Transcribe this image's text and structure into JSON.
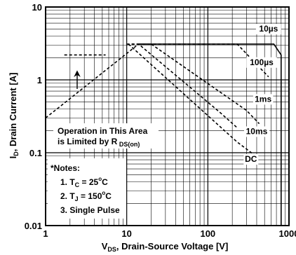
{
  "chart_data": {
    "type": "line",
    "x_scale": "log",
    "y_scale": "log",
    "xlim": [
      1,
      1000
    ],
    "ylim": [
      0.01,
      10
    ],
    "grid": true,
    "xlabel_sym": "V",
    "xlabel_sub": "DS",
    "xlabel_rest": ", Drain-Source Voltage [V]",
    "ylabel_sym": "I",
    "ylabel_sub": "D",
    "ylabel_rest": ", Drain Current [A]",
    "x_ticks": [
      {
        "value": 1,
        "label": "1"
      },
      {
        "value": 10,
        "label": "10"
      },
      {
        "value": 100,
        "label": "100"
      },
      {
        "value": 1000,
        "label": "1000"
      }
    ],
    "y_ticks": [
      {
        "value": 10,
        "label": "10"
      },
      {
        "value": 1,
        "label": "1"
      },
      {
        "value": 0.1,
        "label": "0.1"
      },
      {
        "value": 0.01,
        "label": "0.01"
      }
    ],
    "series": [
      {
        "name": "10µs",
        "style": "solid",
        "points": [
          [
            14,
            3.1
          ],
          [
            650,
            3.1
          ],
          [
            800,
            2.2
          ],
          [
            800,
            0.01
          ]
        ]
      },
      {
        "name": "100µs",
        "style": "dashed",
        "points": [
          [
            14,
            3.1
          ],
          [
            230,
            3.1
          ],
          [
            560,
            1.1
          ]
        ]
      },
      {
        "name": "1ms",
        "style": "dashed",
        "points": [
          [
            11.5,
            3.1
          ],
          [
            20,
            3.1
          ],
          [
            300,
            0.38
          ],
          [
            430,
            0.25
          ]
        ]
      },
      {
        "name": "10ms",
        "style": "dashed",
        "points": [
          [
            10,
            3.1
          ],
          [
            14,
            3.1
          ],
          [
            140,
            0.36
          ],
          [
            230,
            0.22
          ]
        ]
      },
      {
        "name": "DC",
        "style": "dashed",
        "points": [
          [
            10.5,
            3.1
          ],
          [
            230,
            0.14
          ],
          [
            390,
            0.09
          ]
        ]
      },
      {
        "name": "RDS(on) limit",
        "style": "dashed",
        "points": [
          [
            1,
            0.3
          ],
          [
            14,
            3.1
          ]
        ]
      },
      {
        "name": "pulse level",
        "style": "dashed",
        "points": [
          [
            1.7,
            2.2
          ],
          [
            5.5,
            2.2
          ]
        ]
      }
    ],
    "series_labels": [
      {
        "text": "10µs",
        "x": 560,
        "y": 4.6
      },
      {
        "text": "100µs",
        "x": 460,
        "y": 1.6
      },
      {
        "text": "1ms",
        "x": 480,
        "y": 0.5
      },
      {
        "text": "10ms",
        "x": 400,
        "y": 0.18
      },
      {
        "text": "DC",
        "x": 340,
        "y": 0.075
      }
    ],
    "annotations": {
      "operation_line1": "Operation in This Area",
      "operation_line2_pre": "is Limited by R",
      "operation_line2_sub": " DS(on)",
      "notes_title": "*Notes:",
      "note1_pre": "1. T",
      "note1_sub": "C",
      "note1_mid": " = 25",
      "note1_sup": "o",
      "note1_post": "C",
      "note2_pre": "2. T",
      "note2_sub": "J",
      "note2_mid": " = 150",
      "note2_sup": "o",
      "note2_post": "C",
      "note3": "3. Single Pulse"
    }
  }
}
